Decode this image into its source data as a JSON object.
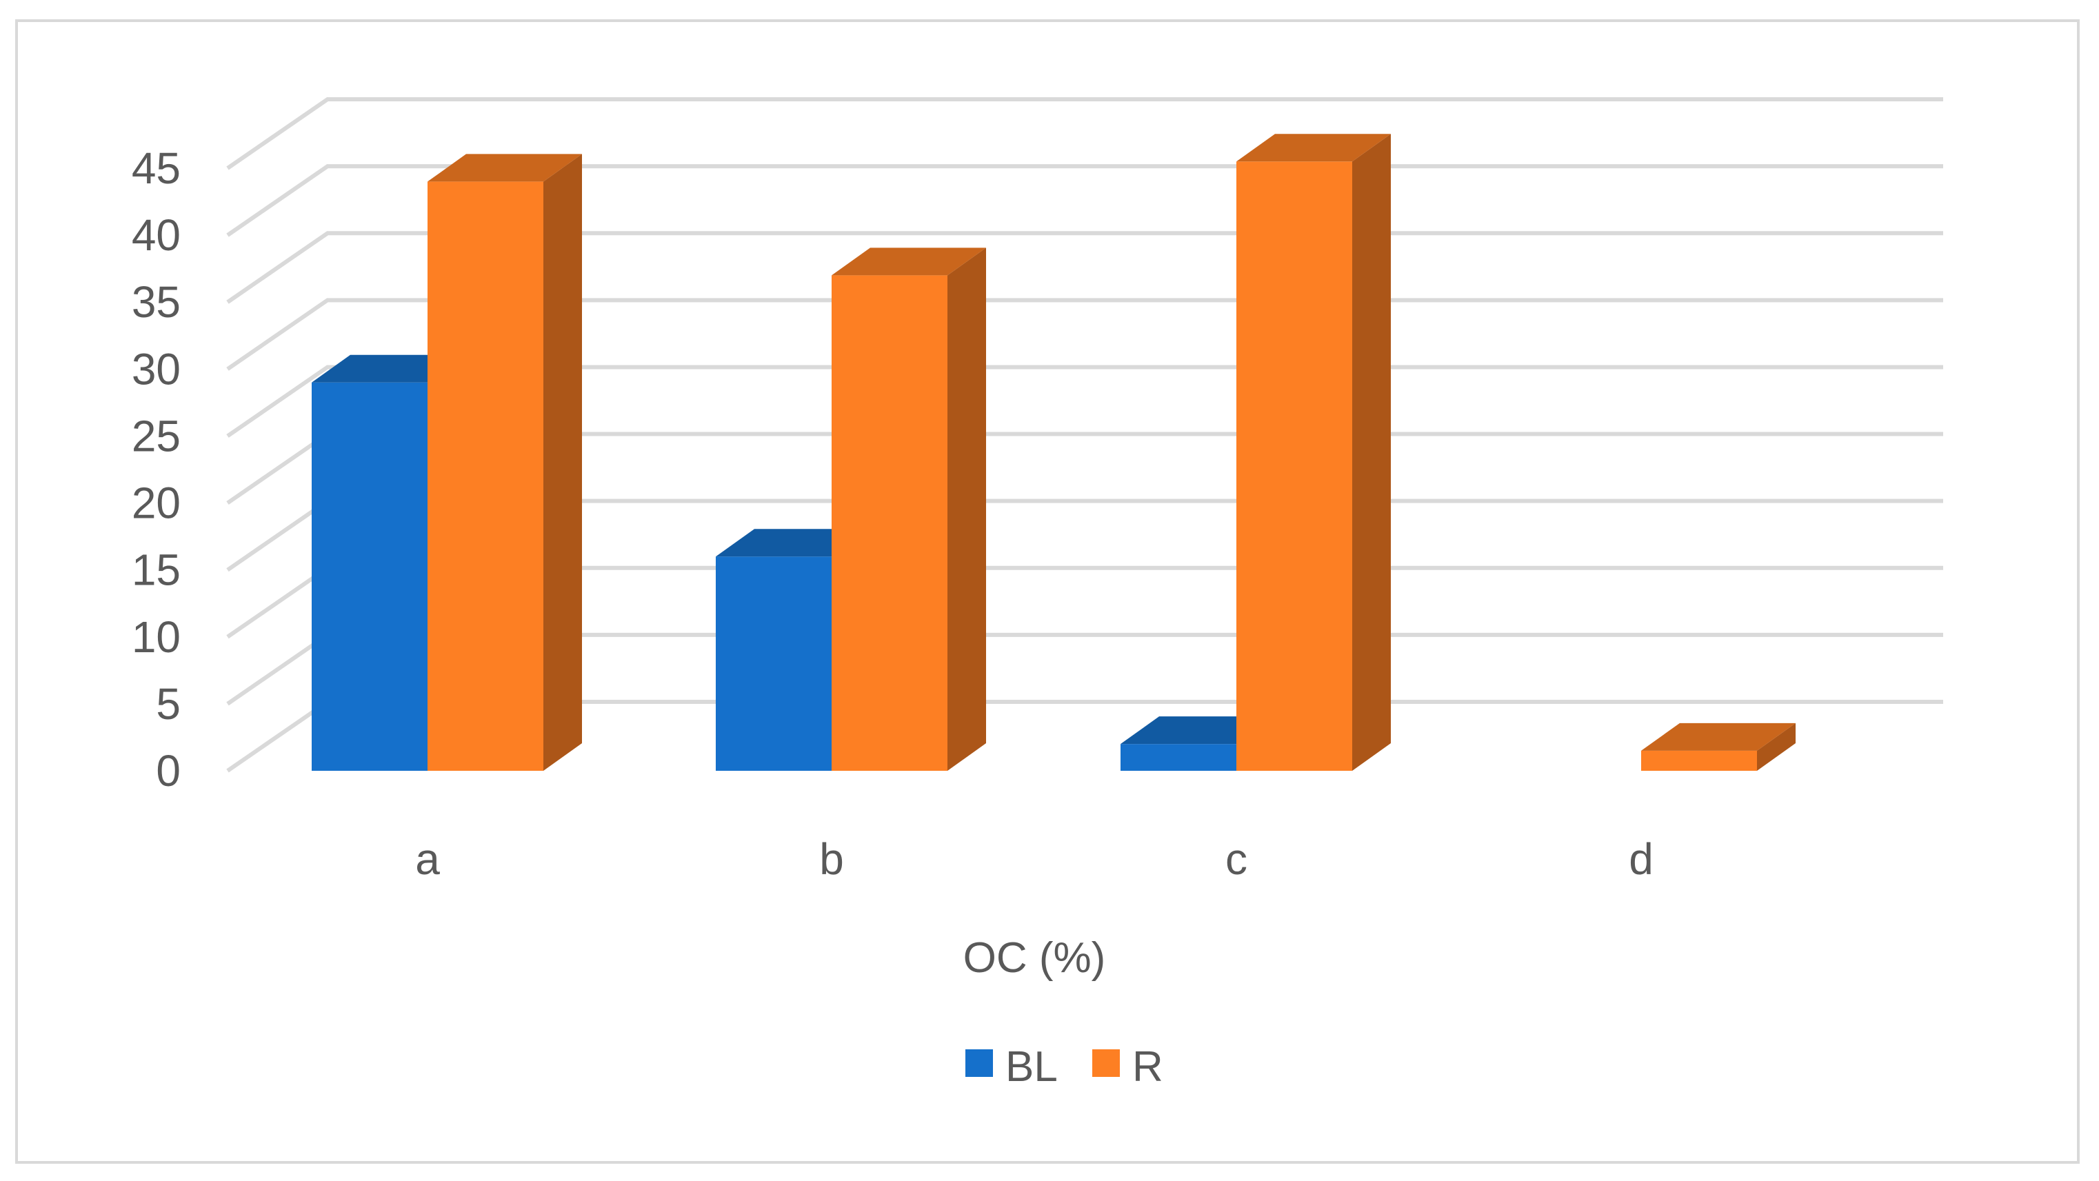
{
  "chart_data": {
    "type": "bar",
    "style": "3d-clustered-column",
    "categories": [
      "a",
      "b",
      "c",
      "d"
    ],
    "series": [
      {
        "name": "BL",
        "values": [
          29,
          16,
          2,
          0
        ],
        "color": "#1570cb"
      },
      {
        "name": "R",
        "values": [
          44,
          37,
          45.5,
          1.5
        ],
        "color": "#fd7f23"
      }
    ],
    "title": "",
    "xlabel": "OC (%)",
    "ylabel": "",
    "ylim": [
      0,
      45
    ],
    "yticks": [
      0,
      5,
      10,
      15,
      20,
      25,
      30,
      35,
      40,
      45
    ],
    "grid": true,
    "legend": "bottom"
  }
}
